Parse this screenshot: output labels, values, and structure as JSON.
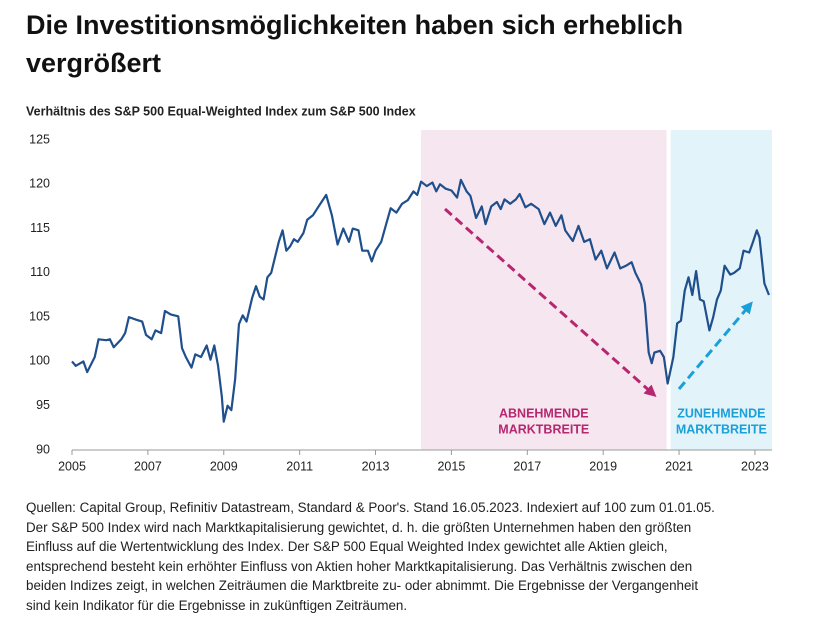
{
  "chart_data": {
    "type": "line",
    "title": "Die Investitionsmöglichkeiten haben sich erheblich vergrößert",
    "subtitle": "Verhältnis des S&P 500 Equal-Weighted Index zum S&P 500 Index",
    "x": [
      2005.0,
      2005.1,
      2005.3,
      2005.4,
      2005.6,
      2005.7,
      2005.9,
      2006.0,
      2006.1,
      2006.3,
      2006.4,
      2006.5,
      2006.7,
      2006.85,
      2006.95,
      2007.1,
      2007.2,
      2007.35,
      2007.45,
      2007.6,
      2007.8,
      2007.9,
      2008.0,
      2008.15,
      2008.25,
      2008.4,
      2008.55,
      2008.65,
      2008.75,
      2008.85,
      2008.95,
      2009.0,
      2009.1,
      2009.2,
      2009.3,
      2009.4,
      2009.5,
      2009.6,
      2009.75,
      2009.85,
      2009.95,
      2010.05,
      2010.15,
      2010.25,
      2010.45,
      2010.55,
      2010.65,
      2010.75,
      2010.85,
      2010.95,
      2011.1,
      2011.2,
      2011.35,
      2011.5,
      2011.7,
      2011.85,
      2012.0,
      2012.15,
      2012.3,
      2012.4,
      2012.55,
      2012.65,
      2012.8,
      2012.9,
      2013.0,
      2013.15,
      2013.3,
      2013.4,
      2013.55,
      2013.7,
      2013.85,
      2014.0,
      2014.1,
      2014.2,
      2014.35,
      2014.5,
      2014.6,
      2014.7,
      2014.85,
      2015.0,
      2015.15,
      2015.25,
      2015.4,
      2015.5,
      2015.65,
      2015.8,
      2015.9,
      2016.05,
      2016.2,
      2016.3,
      2016.4,
      2016.55,
      2016.7,
      2016.8,
      2016.95,
      2017.1,
      2017.3,
      2017.45,
      2017.6,
      2017.75,
      2017.9,
      2018.0,
      2018.2,
      2018.35,
      2018.5,
      2018.65,
      2018.8,
      2018.95,
      2019.1,
      2019.3,
      2019.45,
      2019.6,
      2019.75,
      2019.85,
      2020.0,
      2020.1,
      2020.2,
      2020.28,
      2020.35,
      2020.5,
      2020.6,
      2020.7,
      2020.85,
      2020.95,
      2021.05,
      2021.15,
      2021.25,
      2021.35,
      2021.45,
      2021.55,
      2021.65,
      2021.8,
      2021.9,
      2022.0,
      2022.1,
      2022.2,
      2022.35,
      2022.45,
      2022.6,
      2022.7,
      2022.85,
      2022.95,
      2023.05,
      2023.12,
      2023.25,
      2023.37
    ],
    "series": [
      {
        "color": "#1f4f8c",
        "values": [
          100,
          99.5,
          100,
          98.8,
          100.5,
          102.5,
          102.4,
          102.5,
          101.6,
          102.5,
          103.2,
          105,
          104.7,
          104.5,
          103,
          102.5,
          103.5,
          103.2,
          105.7,
          105.3,
          105.1,
          101.5,
          100.5,
          99.3,
          100.8,
          100.5,
          101.8,
          100.2,
          101.8,
          99.5,
          96,
          93.2,
          95,
          94.5,
          98,
          104.2,
          105.2,
          104.5,
          107.2,
          108.5,
          107.3,
          107,
          109.5,
          110,
          113.5,
          114.8,
          112.5,
          113,
          113.8,
          113.5,
          114.5,
          116,
          116.5,
          117.5,
          118.8,
          116.5,
          113.2,
          115,
          113.5,
          115,
          114.8,
          112.5,
          112.5,
          111.3,
          112.5,
          113.5,
          115.8,
          117.3,
          116.8,
          117.8,
          118.2,
          119.2,
          118.8,
          120.3,
          119.8,
          120.2,
          119.2,
          120,
          119.5,
          119.3,
          118.5,
          120.5,
          119.2,
          118.7,
          116.2,
          117.5,
          115.5,
          117.5,
          118,
          117.2,
          118.3,
          117.8,
          118.3,
          118.9,
          117.4,
          117.8,
          117.2,
          115.5,
          116.8,
          115.3,
          116.5,
          114.8,
          113.6,
          115.3,
          113.5,
          113.8,
          111.5,
          112.5,
          110.5,
          112.3,
          110.5,
          110.8,
          111.2,
          110,
          108.7,
          106.5,
          101,
          99.8,
          101,
          101.2,
          100.5,
          97.5,
          100.5,
          104.3,
          104.6,
          108,
          109.5,
          107.5,
          110.2,
          107,
          106.8,
          103.5,
          105,
          107,
          108,
          110.8,
          109.8,
          110,
          110.5,
          112.5,
          112.3,
          113.5,
          114.8,
          114,
          108.8,
          107.5
        ]
      }
    ],
    "xlim": [
      2005,
      2023.45
    ],
    "xticks": [
      2005,
      2007,
      2009,
      2011,
      2013,
      2015,
      2017,
      2019,
      2021,
      2023
    ],
    "ylim": [
      90,
      125
    ],
    "yticks": [
      90,
      95,
      100,
      105,
      110,
      115,
      120,
      125
    ],
    "shaded_regions": [
      {
        "start": 2014.2,
        "end": 2020.67,
        "color": "#f6e6f0",
        "label_color": "#b5286f",
        "label": [
          "ABNEHMENDE",
          "MARKTBREITE"
        ]
      },
      {
        "start": 2020.78,
        "end": 2023.45,
        "color": "#e3f3fa",
        "label_color": "#1aa0d8",
        "label": [
          "ZUNEHMENDE",
          "MARKTBREITE"
        ]
      }
    ],
    "footnote_lines": [
      "Quellen: Capital Group, Refinitiv Datastream, Standard & Poor's. Stand 16.05.2023. Indexiert auf 100 zum 01.01.05.",
      "Der S&P 500 Index wird nach Marktkapitalisierung gewichtet, d. h. die größten Unternehmen haben den größten",
      "Einfluss auf die Wertentwicklung des Index. Der S&P 500 Equal Weighted Index gewichtet alle Aktien gleich,",
      "entsprechend besteht kein erhöhter Einfluss von Aktien hoher Marktkapitalisierung. Das Verhältnis zwischen den",
      "beiden Indizes zeigt, in welchen Zeiträumen die Marktbreite zu- oder abnimmt. Die Ergebnisse der Vergangenheit",
      "sind kein Indikator für die Ergebnisse in zukünftigen Zeiträumen."
    ]
  }
}
